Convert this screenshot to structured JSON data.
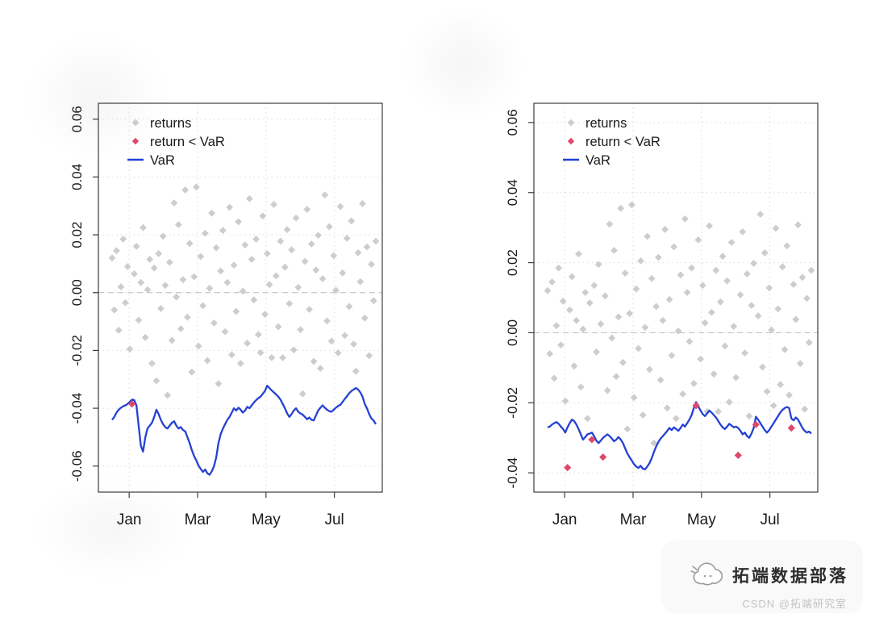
{
  "watermark": {
    "brand": "拓端数据部落",
    "credit": "CSDN @拓端研究室",
    "logo": "cloud-logo"
  },
  "colors": {
    "returns": "#cdcdcd",
    "exceedance": "#e0486b",
    "var_line": "#2441d3",
    "grid": "#dcdcdc",
    "zero_line": "#c4c4c4",
    "axis": "#3c3c3c",
    "text": "#1a1a1a"
  },
  "chart_data": [
    {
      "id": "var-plot-left",
      "type": "scatter",
      "title": "",
      "grid": "dotted",
      "legend_position": "top-left",
      "legend": [
        "returns",
        "return < VaR",
        "VaR"
      ],
      "x_axis": {
        "label": "",
        "unit": "months",
        "tick_labels": [
          "Jan",
          "Mar",
          "May",
          "Jul"
        ],
        "tick_values": [
          0,
          2,
          4,
          6
        ],
        "range": [
          -0.9,
          7.4
        ]
      },
      "y_axis": {
        "label": "",
        "tick_labels": [
          "0.06",
          "0.04",
          "0.02",
          "0.00",
          "-0.02",
          "-0.04",
          "-0.06"
        ],
        "tick_values": [
          0.06,
          0.04,
          0.02,
          0,
          -0.02,
          -0.04,
          -0.06
        ],
        "range": [
          -0.069,
          0.0655
        ]
      },
      "zero_line_y": 0,
      "x_start": -0.5,
      "x_step": 0.0648,
      "series": [
        {
          "name": "returns",
          "type": "scatter",
          "marker": "diamond",
          "color": "#cdcdcd",
          "values": [
            0.012,
            -0.006,
            0.0145,
            -0.013,
            0.002,
            0.0185,
            -0.0035,
            0.009,
            -0.0195,
            -0.0385,
            0.0065,
            0.016,
            -0.0095,
            0.0035,
            0.0225,
            -0.0155,
            0.001,
            0.0115,
            -0.0245,
            0.0085,
            -0.0305,
            0.0135,
            -0.0055,
            0.0195,
            0.0025,
            -0.0355,
            0.0105,
            -0.0165,
            0.031,
            -0.0015,
            0.0235,
            -0.0125,
            0.0045,
            0.0355,
            -0.0085,
            0.017,
            -0.0275,
            0.0055,
            0.0365,
            -0.0185,
            0.0125,
            -0.0045,
            0.0205,
            -0.0235,
            0.0015,
            0.0275,
            -0.0105,
            0.0155,
            -0.0315,
            0.0075,
            0.0215,
            -0.0135,
            0.0035,
            0.0295,
            -0.0215,
            0.0095,
            -0.0065,
            0.0245,
            -0.0245,
            0.0005,
            0.0165,
            -0.0175,
            0.0325,
            0.0115,
            -0.0025,
            0.0185,
            -0.0145,
            -0.0208,
            0.0265,
            -0.0075,
            0.0135,
            0.0028,
            -0.0225,
            0.0305,
            0.0058,
            -0.0118,
            0.0178,
            -0.0225,
            0.0088,
            0.0218,
            -0.0038,
            0.0148,
            -0.0198,
            0.0258,
            0.0018,
            -0.0128,
            -0.035,
            0.0108,
            0.0288,
            -0.0058,
            0.0168,
            -0.0238,
            0.0078,
            0.0198,
            -0.0262,
            0.0048,
            0.0338,
            -0.0098,
            0.0228,
            -0.0168,
            0.0128,
            0.0008,
            -0.0208,
            0.0298,
            0.0068,
            -0.0148,
            0.0188,
            -0.0048,
            0.0248,
            -0.0178,
            -0.0272,
            0.0138,
            0.0038,
            0.0308,
            -0.0088,
            0.0158,
            -0.0218,
            0.0098,
            -0.0028,
            0.0178
          ]
        },
        {
          "name": "return < VaR",
          "type": "scatter",
          "marker": "diamond",
          "color": "#e0486b",
          "rule": "returns plotted red where value < VaR line"
        },
        {
          "name": "VaR",
          "type": "line",
          "color": "#2441d3",
          "values": [
            -0.044,
            -0.043,
            -0.0415,
            -0.0405,
            -0.0398,
            -0.0393,
            -0.039,
            -0.0385,
            -0.0378,
            -0.037,
            -0.0372,
            -0.039,
            -0.046,
            -0.053,
            -0.055,
            -0.05,
            -0.047,
            -0.046,
            -0.045,
            -0.043,
            -0.0405,
            -0.042,
            -0.044,
            -0.0455,
            -0.0465,
            -0.047,
            -0.046,
            -0.045,
            -0.0445,
            -0.046,
            -0.047,
            -0.0465,
            -0.0475,
            -0.048,
            -0.05,
            -0.052,
            -0.0545,
            -0.0565,
            -0.058,
            -0.0598,
            -0.061,
            -0.062,
            -0.0612,
            -0.0625,
            -0.063,
            -0.0618,
            -0.06,
            -0.057,
            -0.052,
            -0.049,
            -0.047,
            -0.0455,
            -0.044,
            -0.043,
            -0.0415,
            -0.04,
            -0.0408,
            -0.0398,
            -0.0405,
            -0.0415,
            -0.0408,
            -0.0395,
            -0.04,
            -0.039,
            -0.038,
            -0.0372,
            -0.0365,
            -0.036,
            -0.035,
            -0.034,
            -0.0322,
            -0.033,
            -0.0338,
            -0.0345,
            -0.0352,
            -0.036,
            -0.037,
            -0.0385,
            -0.04,
            -0.0418,
            -0.043,
            -0.042,
            -0.0408,
            -0.04,
            -0.0412,
            -0.0418,
            -0.0422,
            -0.043,
            -0.0438,
            -0.0432,
            -0.044,
            -0.0442,
            -0.0425,
            -0.0408,
            -0.0398,
            -0.039,
            -0.0398,
            -0.0405,
            -0.041,
            -0.0412,
            -0.0405,
            -0.0398,
            -0.0392,
            -0.0388,
            -0.0378,
            -0.0368,
            -0.0358,
            -0.0348,
            -0.034,
            -0.0335,
            -0.033,
            -0.0335,
            -0.0345,
            -0.036,
            -0.0385,
            -0.04,
            -0.042,
            -0.0435,
            -0.0442,
            -0.0455
          ]
        }
      ]
    },
    {
      "id": "var-plot-right",
      "type": "scatter",
      "title": "",
      "grid": "dotted",
      "legend_position": "top-left",
      "legend": [
        "returns",
        "return < VaR",
        "VaR"
      ],
      "x_axis": {
        "label": "",
        "unit": "months",
        "tick_labels": [
          "Jan",
          "Mar",
          "May",
          "Jul"
        ],
        "tick_values": [
          0,
          2,
          4,
          6
        ],
        "range": [
          -0.9,
          7.4
        ]
      },
      "y_axis": {
        "label": "",
        "tick_labels": [
          "0.06",
          "0.04",
          "0.02",
          "0.00",
          "-0.02",
          "-0.04"
        ],
        "tick_values": [
          0.06,
          0.04,
          0.02,
          0,
          -0.02,
          -0.04
        ],
        "range": [
          -0.0455,
          0.0655
        ]
      },
      "zero_line_y": 0,
      "x_start": -0.5,
      "x_step": 0.0648,
      "series": [
        {
          "name": "returns",
          "type": "scatter",
          "marker": "diamond",
          "color": "#cdcdcd",
          "values_same_as_chart": 0
        },
        {
          "name": "return < VaR",
          "type": "scatter",
          "marker": "diamond",
          "color": "#e0486b",
          "rule": "returns plotted red where value < VaR line"
        },
        {
          "name": "VaR",
          "type": "line",
          "color": "#2441d3",
          "values": [
            -0.027,
            -0.0268,
            -0.0262,
            -0.0258,
            -0.0255,
            -0.026,
            -0.0268,
            -0.0275,
            -0.0285,
            -0.027,
            -0.0258,
            -0.0248,
            -0.0252,
            -0.0262,
            -0.0275,
            -0.029,
            -0.0305,
            -0.0298,
            -0.029,
            -0.0288,
            -0.0285,
            -0.0295,
            -0.0308,
            -0.0315,
            -0.0308,
            -0.03,
            -0.0295,
            -0.029,
            -0.0295,
            -0.0302,
            -0.031,
            -0.0305,
            -0.0298,
            -0.0305,
            -0.0315,
            -0.033,
            -0.0345,
            -0.0355,
            -0.0365,
            -0.0375,
            -0.0382,
            -0.0386,
            -0.038,
            -0.0388,
            -0.039,
            -0.0382,
            -0.0372,
            -0.0358,
            -0.034,
            -0.0325,
            -0.0312,
            -0.0302,
            -0.0295,
            -0.0288,
            -0.028,
            -0.0272,
            -0.0278,
            -0.027,
            -0.0275,
            -0.028,
            -0.0272,
            -0.0262,
            -0.0268,
            -0.0258,
            -0.0248,
            -0.0235,
            -0.0215,
            -0.0198,
            -0.021,
            -0.0222,
            -0.0232,
            -0.0238,
            -0.023,
            -0.0222,
            -0.0228,
            -0.0235,
            -0.0242,
            -0.0252,
            -0.0262,
            -0.027,
            -0.0275,
            -0.0268,
            -0.026,
            -0.0265,
            -0.027,
            -0.0268,
            -0.0272,
            -0.028,
            -0.029,
            -0.0285,
            -0.0295,
            -0.03,
            -0.0288,
            -0.0272,
            -0.024,
            -0.0248,
            -0.0258,
            -0.0268,
            -0.0278,
            -0.0285,
            -0.0278,
            -0.0268,
            -0.0258,
            -0.0248,
            -0.0238,
            -0.0228,
            -0.022,
            -0.0215,
            -0.0212,
            -0.0215,
            -0.0245,
            -0.025,
            -0.0242,
            -0.0248,
            -0.026,
            -0.0272,
            -0.028,
            -0.0285,
            -0.0282,
            -0.0288
          ]
        }
      ]
    }
  ]
}
